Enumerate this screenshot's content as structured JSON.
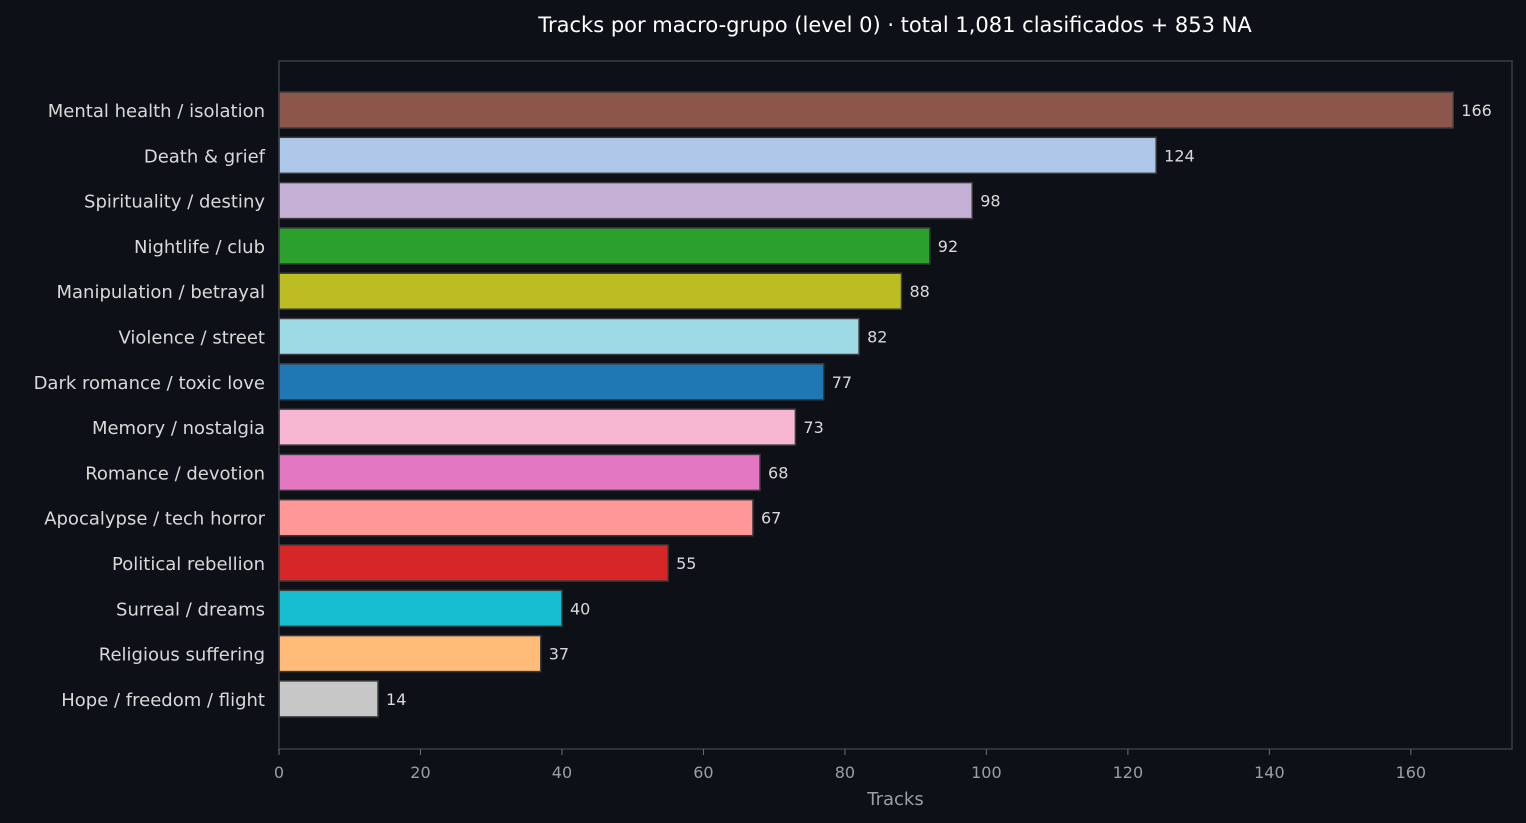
{
  "chart_data": {
    "type": "bar",
    "orientation": "horizontal",
    "title": "Tracks por macro-grupo (level 0)  ·  total 1,081 clasificados + 853 NA",
    "xlabel": "Tracks",
    "ylabel": "",
    "xlim": [
      0,
      174.3
    ],
    "xticks": [
      0,
      20,
      40,
      60,
      80,
      100,
      120,
      140,
      160
    ],
    "grid": false,
    "categories": [
      "Mental health / isolation",
      "Death & grief",
      "Spirituality / destiny",
      "Nightlife / club",
      "Manipulation / betrayal",
      "Violence / street",
      "Dark romance / toxic love",
      "Memory / nostalgia",
      "Romance / devotion",
      "Apocalypse / tech horror",
      "Political rebellion",
      "Surreal / dreams",
      "Religious suffering",
      "Hope / freedom / flight"
    ],
    "values": [
      166,
      124,
      98,
      92,
      88,
      82,
      77,
      73,
      68,
      67,
      55,
      40,
      37,
      14
    ],
    "colors": [
      "#8c564b",
      "#aec7e8",
      "#c5b0d5",
      "#2ca02c",
      "#bcbd22",
      "#9edae5",
      "#1f77b4",
      "#f7b6d2",
      "#e377c2",
      "#ff9896",
      "#d62728",
      "#17becf",
      "#ffbb78",
      "#c7c7c7"
    ]
  }
}
